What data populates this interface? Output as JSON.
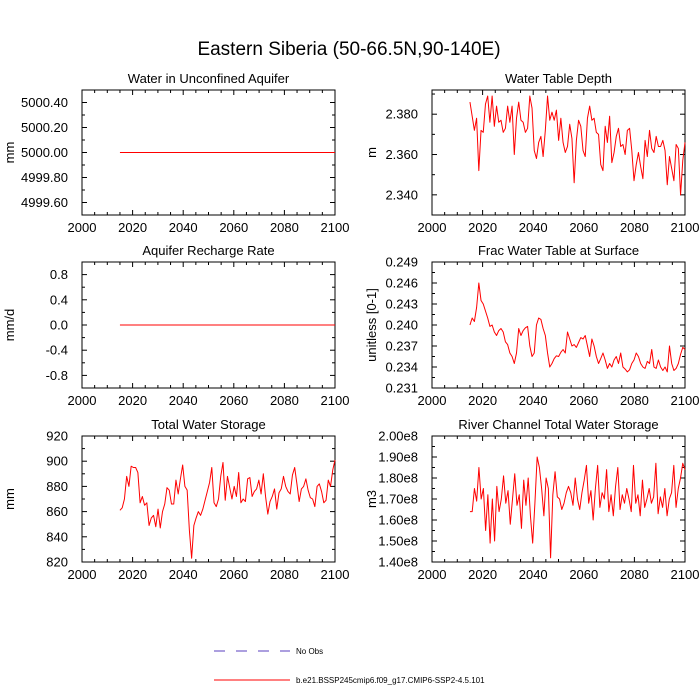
{
  "figure": {
    "title": "Eastern Siberia (50-66.5N,90-140E)",
    "series_color": "#ff0000",
    "legend": [
      {
        "label": "No Obs",
        "color": "#5a3fbf",
        "style": "dashed"
      },
      {
        "label": "b.e21.BSSP245cmip6.f09_g17.CMIP6-SSP2-4.5.101",
        "color": "#ff0000",
        "style": "solid"
      }
    ]
  },
  "chart_data": [
    {
      "type": "line",
      "title": "Water in Unconfined Aquifer",
      "xlabel": "",
      "ylabel": "mm",
      "xlim": [
        2000,
        2100
      ],
      "ylim": [
        4999.5,
        5000.5
      ],
      "xticks": [
        "2000",
        "2020",
        "2040",
        "2060",
        "2080",
        "2100"
      ],
      "yticks": [
        {
          "value": 4999.6,
          "label": "4999.60"
        },
        {
          "value": 4999.8,
          "label": "4999.80"
        },
        {
          "value": 5000.0,
          "label": "5000.00"
        },
        {
          "value": 5000.2,
          "label": "5000.20"
        },
        {
          "value": 5000.4,
          "label": "5000.40"
        }
      ],
      "series": [
        {
          "name": "b.e21.BSSP245cmip6.f09_g17.CMIP6-SSP2-4.5.101",
          "x_start": 2015,
          "values": [
            5000.0,
            5000.0
          ]
        }
      ],
      "x_end": 2100
    },
    {
      "type": "line",
      "title": "Water Table Depth",
      "xlabel": "",
      "ylabel": "m",
      "xlim": [
        2000,
        2100
      ],
      "ylim": [
        2.33,
        2.392
      ],
      "xticks": [
        "2000",
        "2020",
        "2040",
        "2060",
        "2080",
        "2100"
      ],
      "yticks": [
        {
          "value": 2.34,
          "label": "2.340"
        },
        {
          "value": 2.36,
          "label": "2.360"
        },
        {
          "value": 2.38,
          "label": "2.380"
        }
      ],
      "series": [
        {
          "name": "b.e21.BSSP245cmip6.f09_g17.CMIP6-SSP2-4.5.101",
          "x_start": 2015,
          "values": [
            2.386,
            2.379,
            2.372,
            2.378,
            2.352,
            2.372,
            2.371,
            2.385,
            2.389,
            2.376,
            2.389,
            2.374,
            2.384,
            2.376,
            2.377,
            2.371,
            2.373,
            2.384,
            2.376,
            2.384,
            2.36,
            2.378,
            2.386,
            2.377,
            2.376,
            2.371,
            2.373,
            2.389,
            2.383,
            2.362,
            2.358,
            2.366,
            2.369,
            2.359,
            2.372,
            2.389,
            2.377,
            2.381,
            2.377,
            2.382,
            2.367,
            2.378,
            2.366,
            2.361,
            2.364,
            2.375,
            2.368,
            2.346,
            2.367,
            2.377,
            2.374,
            2.362,
            2.359,
            2.378,
            2.384,
            2.377,
            2.378,
            2.371,
            2.37,
            2.355,
            2.352,
            2.374,
            2.366,
            2.379,
            2.356,
            2.361,
            2.369,
            2.373,
            2.364,
            2.365,
            2.36,
            2.372,
            2.373,
            2.362,
            2.347,
            2.355,
            2.361,
            2.354,
            2.348,
            2.367,
            2.359,
            2.372,
            2.363,
            2.361,
            2.369,
            2.364,
            2.364,
            2.367,
            2.362,
            2.345,
            2.359,
            2.353,
            2.347,
            2.365,
            2.363,
            2.34,
            2.357,
            2.366
          ]
        }
      ],
      "x_end": 2100
    },
    {
      "type": "line",
      "title": "Aquifer Recharge Rate",
      "xlabel": "",
      "ylabel": "mm/d",
      "xlim": [
        2000,
        2100
      ],
      "ylim": [
        -1.0,
        1.0
      ],
      "xticks": [
        "2000",
        "2020",
        "2040",
        "2060",
        "2080",
        "2100"
      ],
      "yticks": [
        {
          "value": -0.8,
          "label": "-0.8"
        },
        {
          "value": -0.4,
          "label": "-0.4"
        },
        {
          "value": 0.0,
          "label": "0.0"
        },
        {
          "value": 0.4,
          "label": "0.4"
        },
        {
          "value": 0.8,
          "label": "0.8"
        }
      ],
      "series": [
        {
          "name": "b.e21.BSSP245cmip6.f09_g17.CMIP6-SSP2-4.5.101",
          "x_start": 2015,
          "values": [
            0.0,
            0.0
          ]
        }
      ],
      "x_end": 2100
    },
    {
      "type": "line",
      "title": "Frac Water Table at Surface",
      "xlabel": "",
      "ylabel": "unitless [0-1]",
      "xlim": [
        2000,
        2100
      ],
      "ylim": [
        0.231,
        0.249
      ],
      "xticks": [
        "2000",
        "2020",
        "2040",
        "2060",
        "2080",
        "2100"
      ],
      "yticks": [
        {
          "value": 0.231,
          "label": "0.231"
        },
        {
          "value": 0.234,
          "label": "0.234"
        },
        {
          "value": 0.237,
          "label": "0.237"
        },
        {
          "value": 0.24,
          "label": "0.240"
        },
        {
          "value": 0.243,
          "label": "0.243"
        },
        {
          "value": 0.246,
          "label": "0.246"
        },
        {
          "value": 0.249,
          "label": "0.249"
        }
      ],
      "series": [
        {
          "name": "b.e21.BSSP245cmip6.f09_g17.CMIP6-SSP2-4.5.101",
          "x_start": 2015,
          "values": [
            0.24,
            0.241,
            0.2405,
            0.2425,
            0.246,
            0.2435,
            0.243,
            0.242,
            0.241,
            0.2398,
            0.24,
            0.239,
            0.2385,
            0.2392,
            0.2395,
            0.239,
            0.2376,
            0.2372,
            0.236,
            0.2355,
            0.2345,
            0.236,
            0.2395,
            0.2385,
            0.2392,
            0.2396,
            0.2398,
            0.237,
            0.2355,
            0.236,
            0.24,
            0.241,
            0.2408,
            0.2395,
            0.2385,
            0.236,
            0.234,
            0.2345,
            0.2352,
            0.2356,
            0.2355,
            0.2361,
            0.2365,
            0.236,
            0.239,
            0.238,
            0.237,
            0.2372,
            0.2368,
            0.2375,
            0.2382,
            0.238,
            0.2385,
            0.237,
            0.2355,
            0.238,
            0.237,
            0.2355,
            0.2345,
            0.2352,
            0.236,
            0.235,
            0.2338,
            0.2345,
            0.234,
            0.235,
            0.2355,
            0.2345,
            0.236,
            0.234,
            0.2337,
            0.2333,
            0.2336,
            0.2345,
            0.235,
            0.236,
            0.2355,
            0.2345,
            0.234,
            0.2338,
            0.2348,
            0.2345,
            0.2365,
            0.234,
            0.2338,
            0.235,
            0.234,
            0.2335,
            0.234,
            0.2333,
            0.237,
            0.2345,
            0.2335,
            0.2338,
            0.2345,
            0.2358,
            0.2368,
            0.2365
          ]
        }
      ],
      "x_end": 2100
    },
    {
      "type": "line",
      "title": "Total Water Storage",
      "xlabel": "",
      "ylabel": "mm",
      "xlim": [
        2000,
        2100
      ],
      "ylim": [
        820,
        920
      ],
      "xticks": [
        "2000",
        "2020",
        "2040",
        "2060",
        "2080",
        "2100"
      ],
      "yticks": [
        {
          "value": 820,
          "label": "820"
        },
        {
          "value": 840,
          "label": "840"
        },
        {
          "value": 860,
          "label": "860"
        },
        {
          "value": 880,
          "label": "880"
        },
        {
          "value": 900,
          "label": "900"
        },
        {
          "value": 920,
          "label": "920"
        }
      ],
      "series": [
        {
          "name": "b.e21.BSSP245cmip6.f09_g17.CMIP6-SSP2-4.5.101",
          "x_start": 2015,
          "values": [
            861,
            863,
            870,
            888,
            880,
            896,
            895,
            895,
            891,
            867,
            872,
            865,
            867,
            849,
            855,
            857,
            848,
            862,
            847,
            860,
            866,
            879,
            877,
            866,
            866,
            885,
            874,
            886,
            897,
            880,
            877,
            845,
            823,
            849,
            855,
            860,
            857,
            862,
            869,
            876,
            883,
            895,
            867,
            864,
            870,
            888,
            899,
            869,
            888,
            879,
            870,
            880,
            872,
            891,
            867,
            870,
            868,
            886,
            887,
            872,
            876,
            878,
            885,
            874,
            890,
            872,
            858,
            868,
            872,
            878,
            862,
            875,
            878,
            888,
            880,
            876,
            874,
            889,
            895,
            882,
            868,
            878,
            880,
            886,
            877,
            871,
            870,
            864,
            880,
            882,
            876,
            867,
            869,
            885,
            880,
            893,
            901
          ]
        }
      ],
      "x_end": 2100
    },
    {
      "type": "line",
      "title": "River Channel Total Water Storage",
      "xlabel": "",
      "ylabel": "m3",
      "xlim": [
        2000,
        2100
      ],
      "ylim": [
        140000000.0,
        200000000.0
      ],
      "xticks": [
        "2000",
        "2020",
        "2040",
        "2060",
        "2080",
        "2100"
      ],
      "yticks": [
        {
          "value": 140000000.0,
          "label": "1.40e8"
        },
        {
          "value": 150000000.0,
          "label": "1.50e8"
        },
        {
          "value": 160000000.0,
          "label": "1.60e8"
        },
        {
          "value": 170000000.0,
          "label": "1.70e8"
        },
        {
          "value": 180000000.0,
          "label": "1.80e8"
        },
        {
          "value": 190000000.0,
          "label": "1.90e8"
        },
        {
          "value": 200000000.0,
          "label": "2.00e8"
        }
      ],
      "series": [
        {
          "name": "b.e21.BSSP245cmip6.f09_g17.CMIP6-SSP2-4.5.101",
          "x_start": 2015,
          "values": [
            164000000.0,
            164000000.0,
            175000000.0,
            169000000.0,
            185000000.0,
            170000000.0,
            175000000.0,
            155000000.0,
            172000000.0,
            149000000.0,
            170000000.0,
            150000000.0,
            176000000.0,
            164000000.0,
            170000000.0,
            181000000.0,
            168000000.0,
            174000000.0,
            158000000.0,
            170000000.0,
            182000000.0,
            167000000.0,
            172000000.0,
            156000000.0,
            179000000.0,
            167000000.0,
            180000000.0,
            162000000.0,
            149000000.0,
            168000000.0,
            190000000.0,
            185000000.0,
            175000000.0,
            162000000.0,
            180000000.0,
            175000000.0,
            142000000.0,
            172000000.0,
            183000000.0,
            171000000.0,
            170000000.0,
            165000000.0,
            168000000.0,
            173000000.0,
            176000000.0,
            173000000.0,
            167000000.0,
            180000000.0,
            170000000.0,
            165000000.0,
            173000000.0,
            179000000.0,
            186000000.0,
            168000000.0,
            174000000.0,
            160000000.0,
            175000000.0,
            186000000.0,
            166000000.0,
            173000000.0,
            170000000.0,
            184000000.0,
            164000000.0,
            172000000.0,
            162000000.0,
            176000000.0,
            185000000.0,
            165000000.0,
            172000000.0,
            168000000.0,
            175000000.0,
            170000000.0,
            164000000.0,
            186000000.0,
            168000000.0,
            172000000.0,
            162000000.0,
            179000000.0,
            166000000.0,
            170000000.0,
            175000000.0,
            168000000.0,
            171000000.0,
            187000000.0,
            163000000.0,
            171000000.0,
            166000000.0,
            175000000.0,
            162000000.0,
            170000000.0,
            173000000.0,
            186000000.0,
            166000000.0,
            175000000.0,
            180000000.0,
            187000000.0,
            184000000.0
          ]
        }
      ],
      "x_end": 2100
    }
  ]
}
